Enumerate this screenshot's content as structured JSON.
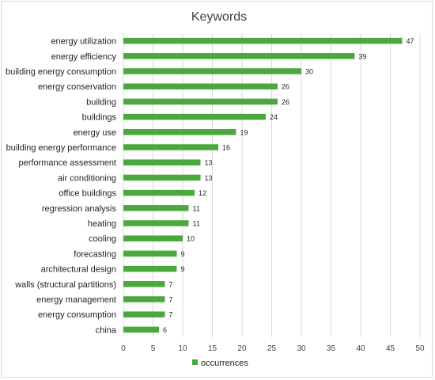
{
  "chart_data": {
    "type": "bar",
    "orientation": "horizontal",
    "title": "Keywords",
    "xlabel": "",
    "ylabel": "",
    "categories": [
      "energy utilization",
      "energy efficiency",
      "building energy consumption",
      "energy conservation",
      "building",
      "buildings",
      "energy use",
      "building energy performance",
      "performance assessment",
      "air conditioning",
      "office buildings",
      "regression analysis",
      "heating",
      "cooling",
      "forecasting",
      "architectural design",
      "walls (structural partitions)",
      "energy management",
      "energy consumption",
      "china"
    ],
    "series": [
      {
        "name": "occurrences",
        "values": [
          47,
          39,
          30,
          26,
          26,
          24,
          19,
          16,
          13,
          13,
          12,
          11,
          11,
          10,
          9,
          9,
          7,
          7,
          7,
          6
        ]
      }
    ],
    "xlim": [
      0,
      50
    ],
    "xticks": [
      "0",
      "5",
      "10",
      "15",
      "20",
      "25",
      "30",
      "35",
      "40",
      "45",
      "50"
    ],
    "grid": "vertical",
    "data_labels": true,
    "legend": "bottom",
    "colors": {
      "bar": "#4aa83d",
      "grid": "#d9d9d9",
      "frame": "#d9d9d9"
    }
  }
}
